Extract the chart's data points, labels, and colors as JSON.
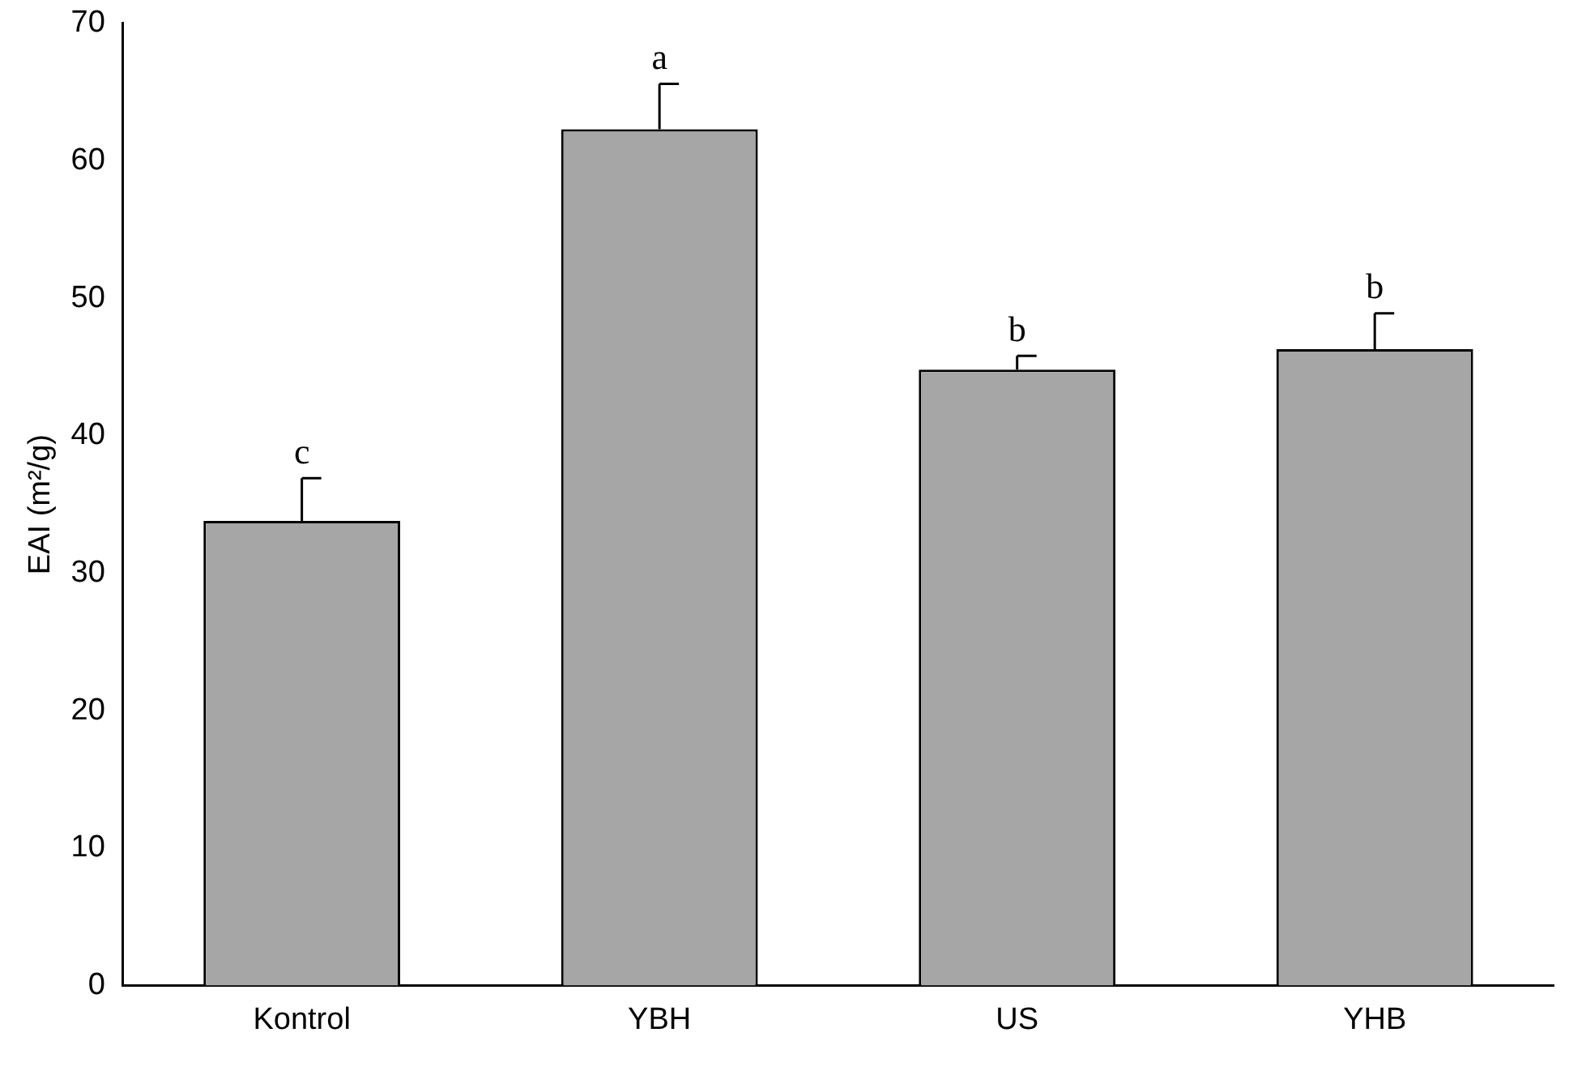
{
  "chart_data": {
    "type": "bar",
    "ylabel": "EAI (m²/g)",
    "categories": [
      "Kontrol",
      "YBH",
      "US",
      "YHB"
    ],
    "values": [
      33.8,
      62.3,
      44.8,
      46.3
    ],
    "errors": [
      [
        33.8,
        36.9
      ],
      [
        62.3,
        65.6
      ],
      [
        44.8,
        45.8
      ],
      [
        46.3,
        48.9
      ]
    ],
    "color": "#a6a6a6",
    "ylim": [
      0,
      70
    ],
    "yticks": [
      0,
      10,
      20,
      30,
      40,
      50,
      60,
      70
    ],
    "annotations": [
      {
        "text": "c",
        "x": "Kontrol",
        "y": 36.9
      },
      {
        "text": "a",
        "x": "YBH",
        "y": 65.6
      },
      {
        "text": "b",
        "x": "US",
        "y": 45.8
      },
      {
        "text": "b",
        "x": "YHB",
        "y": 48.9
      }
    ]
  }
}
